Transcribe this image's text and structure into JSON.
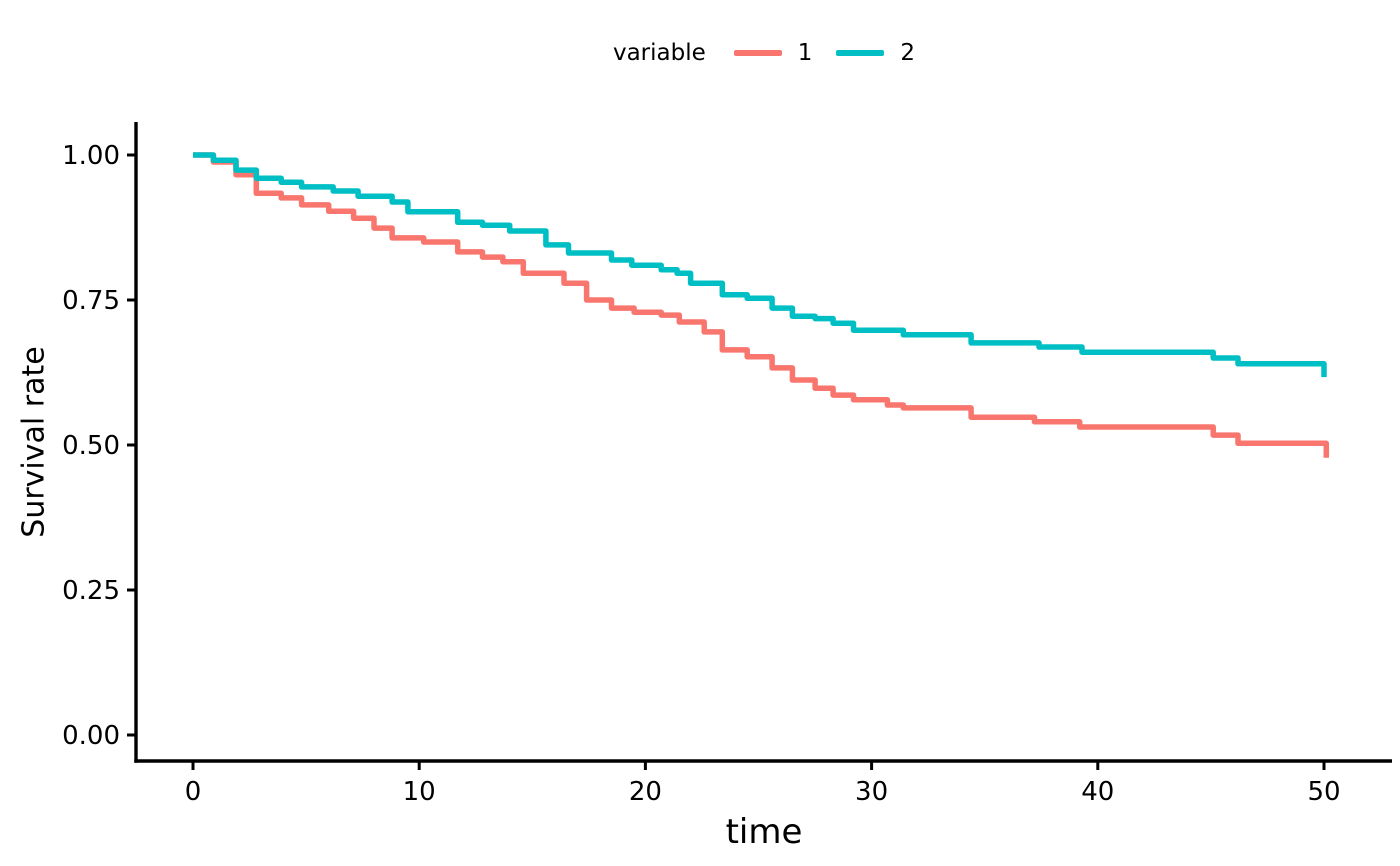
{
  "chart_data": {
    "type": "line",
    "subtype": "step-survival-kaplan-meier",
    "title": "",
    "xlabel": "time",
    "ylabel": "Survival rate",
    "legend_title": "variable",
    "legend_position": "top-center",
    "grid": false,
    "xlim": [
      0,
      52
    ],
    "ylim": [
      0,
      1.0
    ],
    "x_ticks": [
      0,
      10,
      20,
      30,
      40,
      50
    ],
    "y_ticks": [
      {
        "v": 0.0,
        "label": "0.00"
      },
      {
        "v": 0.25,
        "label": "0.25"
      },
      {
        "v": 0.5,
        "label": "0.50"
      },
      {
        "v": 0.75,
        "label": "0.75"
      },
      {
        "v": 1.0,
        "label": "1.00"
      }
    ],
    "series": [
      {
        "name": "1",
        "color": "#F8766D",
        "interpolation": "step-after",
        "steps": [
          [
            0.0,
            1.0
          ],
          [
            0.9,
            0.988
          ],
          [
            1.9,
            0.966
          ],
          [
            2.8,
            0.934
          ],
          [
            3.9,
            0.926
          ],
          [
            4.8,
            0.914
          ],
          [
            6.0,
            0.903
          ],
          [
            7.1,
            0.891
          ],
          [
            8.0,
            0.874
          ],
          [
            8.8,
            0.857
          ],
          [
            10.2,
            0.85
          ],
          [
            11.7,
            0.833
          ],
          [
            12.8,
            0.824
          ],
          [
            13.7,
            0.816
          ],
          [
            14.6,
            0.796
          ],
          [
            16.4,
            0.779
          ],
          [
            17.4,
            0.75
          ],
          [
            18.5,
            0.736
          ],
          [
            19.5,
            0.729
          ],
          [
            20.7,
            0.724
          ],
          [
            21.5,
            0.712
          ],
          [
            22.6,
            0.695
          ],
          [
            23.4,
            0.664
          ],
          [
            24.5,
            0.652
          ],
          [
            25.6,
            0.633
          ],
          [
            26.5,
            0.612
          ],
          [
            27.5,
            0.598
          ],
          [
            28.3,
            0.586
          ],
          [
            29.2,
            0.578
          ],
          [
            30.7,
            0.569
          ],
          [
            31.4,
            0.564
          ],
          [
            34.4,
            0.548
          ],
          [
            37.2,
            0.54
          ],
          [
            39.2,
            0.531
          ],
          [
            45.1,
            0.517
          ],
          [
            46.2,
            0.503
          ],
          [
            50.1,
            0.478
          ]
        ]
      },
      {
        "name": "2",
        "color": "#00BFC4",
        "interpolation": "step-after",
        "steps": [
          [
            0.0,
            1.0
          ],
          [
            0.9,
            0.991
          ],
          [
            1.9,
            0.974
          ],
          [
            2.8,
            0.96
          ],
          [
            3.9,
            0.953
          ],
          [
            4.8,
            0.945
          ],
          [
            6.2,
            0.938
          ],
          [
            7.3,
            0.929
          ],
          [
            8.8,
            0.919
          ],
          [
            9.5,
            0.902
          ],
          [
            11.7,
            0.884
          ],
          [
            12.8,
            0.879
          ],
          [
            14.0,
            0.869
          ],
          [
            15.6,
            0.845
          ],
          [
            16.6,
            0.831
          ],
          [
            18.5,
            0.819
          ],
          [
            19.4,
            0.81
          ],
          [
            20.7,
            0.802
          ],
          [
            21.4,
            0.796
          ],
          [
            22.0,
            0.779
          ],
          [
            23.4,
            0.759
          ],
          [
            24.5,
            0.753
          ],
          [
            25.6,
            0.736
          ],
          [
            26.5,
            0.722
          ],
          [
            27.5,
            0.718
          ],
          [
            28.3,
            0.71
          ],
          [
            29.2,
            0.698
          ],
          [
            31.4,
            0.69
          ],
          [
            34.4,
            0.676
          ],
          [
            37.4,
            0.669
          ],
          [
            39.3,
            0.66
          ],
          [
            45.1,
            0.65
          ],
          [
            46.2,
            0.64
          ],
          [
            50.0,
            0.617
          ]
        ]
      }
    ]
  },
  "colors": {
    "background": "#FFFFFF",
    "axis": "#000000",
    "text": "#000000"
  }
}
